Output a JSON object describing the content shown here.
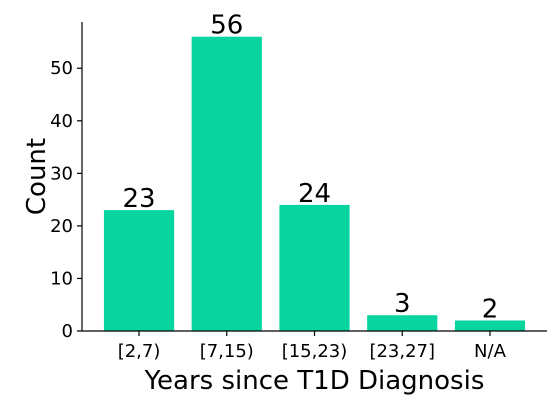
{
  "chart_data": {
    "type": "bar",
    "categories": [
      "[2,7)",
      "[7,15)",
      "[15,23)",
      "[23,27]",
      "N/A"
    ],
    "values": [
      23,
      56,
      24,
      3,
      2
    ],
    "data_labels": [
      "23",
      "56",
      "24",
      "3",
      "2"
    ],
    "title": "",
    "xlabel": "Years since T1D Diagnosis",
    "ylabel": "Count",
    "ylim": [
      0,
      58.8
    ],
    "yticks": [
      0,
      10,
      20,
      30,
      40,
      50
    ],
    "grid": false,
    "legend": "none",
    "bar_color": "#07d49e"
  }
}
